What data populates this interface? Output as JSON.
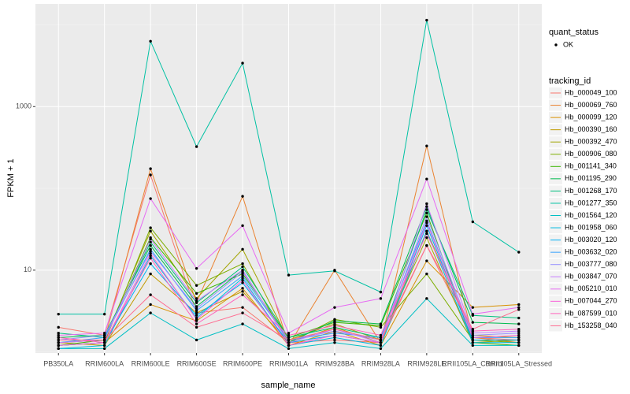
{
  "chart_data": {
    "type": "line",
    "y_label": "FPKM + 1",
    "x_label": "sample_name",
    "log_scale": true,
    "grid": true,
    "categories": [
      "PB350LA",
      "RRIM600LA",
      "RRIM600LE",
      "RRIM600SE",
      "RRIM600PE",
      "RRIM901LA",
      "RRIM928BA",
      "RRIM928LA",
      "RRIM928LE",
      "RRII105LA_Control",
      "RRII105LA_Stressed"
    ],
    "ylim": [
      0.97,
      18000
    ],
    "yticks": [
      10,
      1000
    ],
    "point_legend_title": "quant_status",
    "point_legend": [
      "OK"
    ],
    "point_color": "#000000",
    "legend_title": "tracking_id",
    "series": [
      {
        "name": "Hb_000049_100",
        "color": "#F8766D",
        "values": [
          2.0,
          1.6,
          146,
          3,
          3.5,
          1.3,
          1.4,
          1.3,
          20,
          1.5,
          1.4
        ]
      },
      {
        "name": "Hb_000069_760",
        "color": "#EA8331",
        "values": [
          1.3,
          1.4,
          174,
          4,
          80,
          1.2,
          10,
          1.3,
          330,
          1.5,
          1.3
        ]
      },
      {
        "name": "Hb_000099_120",
        "color": "#D89000",
        "values": [
          1.2,
          1.3,
          3.8,
          2.4,
          6,
          1.2,
          1.8,
          1.2,
          13,
          3.5,
          3.8
        ]
      },
      {
        "name": "Hb_000390_160",
        "color": "#C09B00",
        "values": [
          1.3,
          1.2,
          9,
          3,
          5.5,
          1.3,
          2.0,
          1.3,
          30,
          1.6,
          1.5
        ]
      },
      {
        "name": "Hb_000392_470",
        "color": "#A3A500",
        "values": [
          1.3,
          1.4,
          30,
          4.5,
          18,
          1.4,
          2.2,
          1.4,
          25,
          1.3,
          1.4
        ]
      },
      {
        "name": "Hb_000906_080",
        "color": "#7CAE00",
        "values": [
          1.2,
          1.3,
          33,
          6.5,
          12,
          1.3,
          2.5,
          2.0,
          9,
          1.4,
          1.3
        ]
      },
      {
        "name": "Hb_001141_340",
        "color": "#39B600",
        "values": [
          1.2,
          1.4,
          25,
          5.2,
          9,
          1.5,
          2.3,
          2.1,
          50,
          1.3,
          1.2
        ]
      },
      {
        "name": "Hb_001195_290",
        "color": "#00BB4E",
        "values": [
          1.5,
          1.6,
          20,
          3.6,
          10,
          1.3,
          2.4,
          2.2,
          60,
          2.3,
          2.2
        ]
      },
      {
        "name": "Hb_001268_170",
        "color": "#00BF7D",
        "values": [
          1.7,
          1.5,
          22,
          4,
          11,
          1.5,
          2,
          1.5,
          55,
          2.8,
          2.6
        ]
      },
      {
        "name": "Hb_001277_350",
        "color": "#00C1A3",
        "values": [
          2.9,
          2.9,
          6300,
          324,
          3400,
          8.7,
          9.8,
          5.4,
          11400,
          39,
          16.6
        ]
      },
      {
        "name": "Hb_001564_120",
        "color": "#00BFC4",
        "values": [
          1.1,
          1.1,
          3,
          1.4,
          2.2,
          1.1,
          1.3,
          1.1,
          4.5,
          1.2,
          1.2
        ]
      },
      {
        "name": "Hb_001958_060",
        "color": "#00BAE0",
        "values": [
          1.1,
          1.2,
          15,
          2.6,
          8,
          1.2,
          1.5,
          1.2,
          30,
          1.3,
          1.3
        ]
      },
      {
        "name": "Hb_003020_120",
        "color": "#00B0F6",
        "values": [
          1.2,
          1.3,
          12,
          2.8,
          7,
          1.3,
          1.6,
          1.3,
          35,
          1.4,
          1.4
        ]
      },
      {
        "name": "Hb_003632_020",
        "color": "#35A2FF",
        "values": [
          1.3,
          1.5,
          18,
          3.2,
          8.5,
          1.4,
          1.7,
          1.5,
          40,
          1.5,
          1.5
        ]
      },
      {
        "name": "Hb_003777_080",
        "color": "#9590FF",
        "values": [
          1.4,
          1.6,
          17,
          3.4,
          9.5,
          1.4,
          1.8,
          1.4,
          45,
          1.6,
          1.7
        ]
      },
      {
        "name": "Hb_003847_070",
        "color": "#C77CFF",
        "values": [
          1.3,
          1.4,
          24,
          4.2,
          10,
          1.3,
          1.9,
          1.3,
          65,
          1.7,
          1.8
        ]
      },
      {
        "name": "Hb_005210_010",
        "color": "#E76BF3",
        "values": [
          1.6,
          1.7,
          75,
          10.5,
          35,
          1.7,
          3.5,
          4.5,
          130,
          2.9,
          3.5
        ]
      },
      {
        "name": "Hb_007044_270",
        "color": "#FA62DB",
        "values": [
          1.2,
          1.3,
          16,
          2.5,
          7.5,
          1.2,
          1.6,
          1.3,
          38,
          1.5,
          1.6
        ]
      },
      {
        "name": "Hb_087599_010",
        "color": "#FF62BC",
        "values": [
          1.5,
          1.3,
          14,
          2.2,
          5,
          1.6,
          2.1,
          1.6,
          28,
          1.8,
          1.9
        ]
      },
      {
        "name": "Hb_153258_040",
        "color": "#FF6C91",
        "values": [
          1.4,
          1.4,
          5,
          2,
          3,
          1.4,
          1.9,
          1.4,
          20,
          1.9,
          3.3
        ]
      }
    ]
  }
}
